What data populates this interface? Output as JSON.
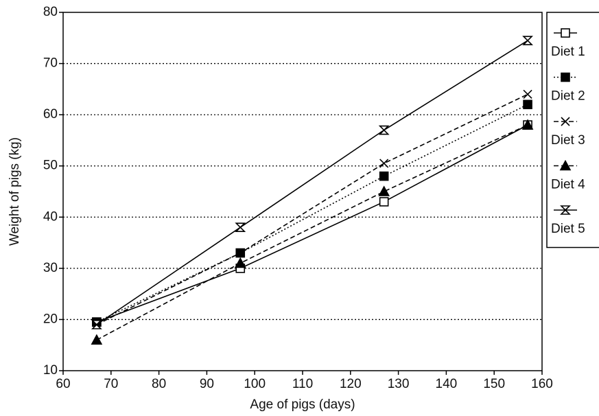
{
  "chart_data": {
    "type": "line",
    "x_label": "Age of pigs (days)",
    "y_label": "Weight of pigs (kg)",
    "x": [
      67,
      97,
      127,
      157
    ],
    "series": [
      {
        "name": "Diet 1",
        "color": "#000000",
        "marker": "square-open",
        "dash": "solid",
        "values": [
          19.5,
          30,
          43,
          58
        ]
      },
      {
        "name": "Diet 2",
        "color": "#000000",
        "marker": "square-filled",
        "dash": "dotted",
        "values": [
          19.5,
          33,
          48,
          62
        ]
      },
      {
        "name": "Diet 3",
        "color": "#000000",
        "marker": "x",
        "dash": "dashed",
        "values": [
          19,
          33,
          50.5,
          64
        ]
      },
      {
        "name": "Diet 4",
        "color": "#000000",
        "marker": "triangle",
        "dash": "dashed",
        "values": [
          16,
          31,
          45,
          58
        ]
      },
      {
        "name": "Diet 5",
        "color": "#000000",
        "marker": "hourglass",
        "dash": "solid",
        "values": [
          19,
          38,
          57,
          74.5
        ]
      }
    ],
    "xlim": [
      60,
      160
    ],
    "xticks": [
      60,
      70,
      80,
      90,
      100,
      110,
      120,
      130,
      140,
      150,
      160
    ],
    "ylim": [
      10,
      80
    ],
    "yticks": [
      10,
      20,
      30,
      40,
      50,
      60,
      70,
      80
    ],
    "grid": true,
    "legend": "right"
  }
}
